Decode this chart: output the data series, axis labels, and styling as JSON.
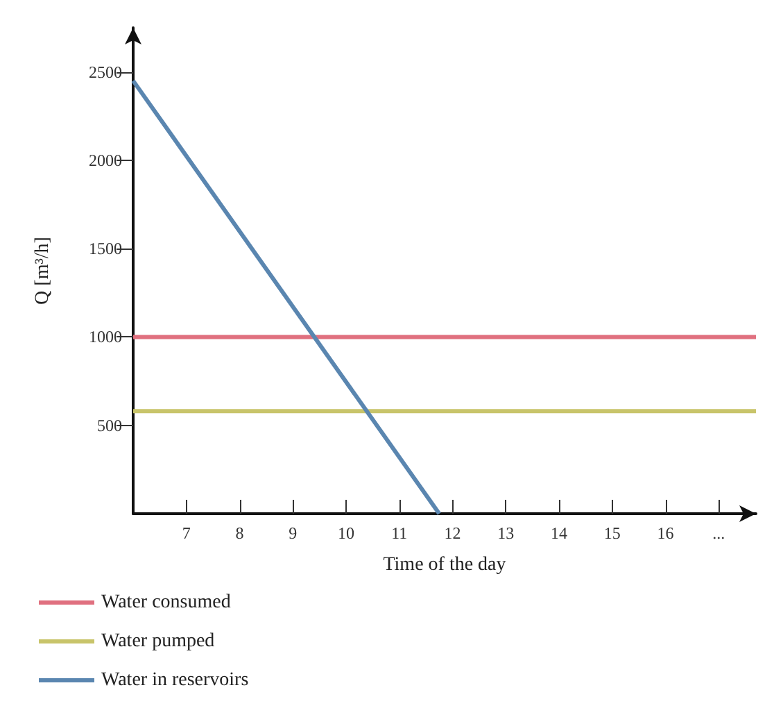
{
  "chart_data": {
    "type": "line",
    "xlabel": "Time of the day",
    "ylabel": "Q [m³/h]",
    "xlim": [
      6,
      17.7
    ],
    "ylim": [
      0,
      2750
    ],
    "xticks": [
      7,
      8,
      9,
      10,
      11,
      12,
      13,
      14,
      15,
      16,
      {
        "value": 17,
        "label": "..."
      }
    ],
    "yticks": [
      500,
      1000,
      1500,
      2000,
      2500
    ],
    "grid": false,
    "legend": "bottom left",
    "marker": "none",
    "line_style": "solid",
    "series": [
      {
        "name": "Water consumed",
        "color": "#e0707f",
        "x": [
          6,
          17.7
        ],
        "values": [
          1000,
          1000
        ]
      },
      {
        "name": "Water pumped",
        "color": "#c8c46a",
        "x": [
          6,
          17.7
        ],
        "values": [
          580,
          580
        ]
      },
      {
        "name": "Water in reservoirs",
        "color": "#5a86b0",
        "x": [
          6,
          11.75
        ],
        "values": [
          2450,
          0
        ]
      }
    ]
  }
}
